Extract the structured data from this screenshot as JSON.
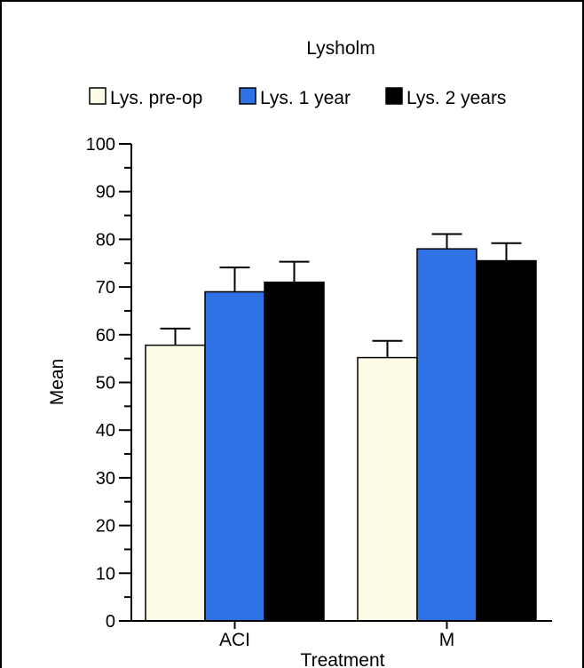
{
  "chart_data": {
    "type": "bar",
    "title": "Lysholm",
    "xlabel": "Treatment",
    "ylabel": "Mean",
    "categories": [
      "ACI",
      "M"
    ],
    "series": [
      {
        "name": "Lys. pre-op",
        "color": "#fefce6",
        "values": [
          57.8,
          55.2
        ],
        "errors": [
          3.5,
          3.5
        ]
      },
      {
        "name": "Lys. 1 year",
        "color": "#2e72e6",
        "values": [
          69.0,
          78.0
        ],
        "errors": [
          5.1,
          3.1
        ]
      },
      {
        "name": "Lys. 2 years",
        "color": "#000000",
        "values": [
          71.0,
          75.5
        ],
        "errors": [
          4.3,
          3.7
        ]
      }
    ],
    "ylim": [
      0,
      100
    ],
    "yticks": [
      0,
      10,
      20,
      30,
      40,
      50,
      60,
      70,
      80,
      90,
      100
    ],
    "minor_ticks": true,
    "grid": false,
    "legend_position": "top"
  }
}
